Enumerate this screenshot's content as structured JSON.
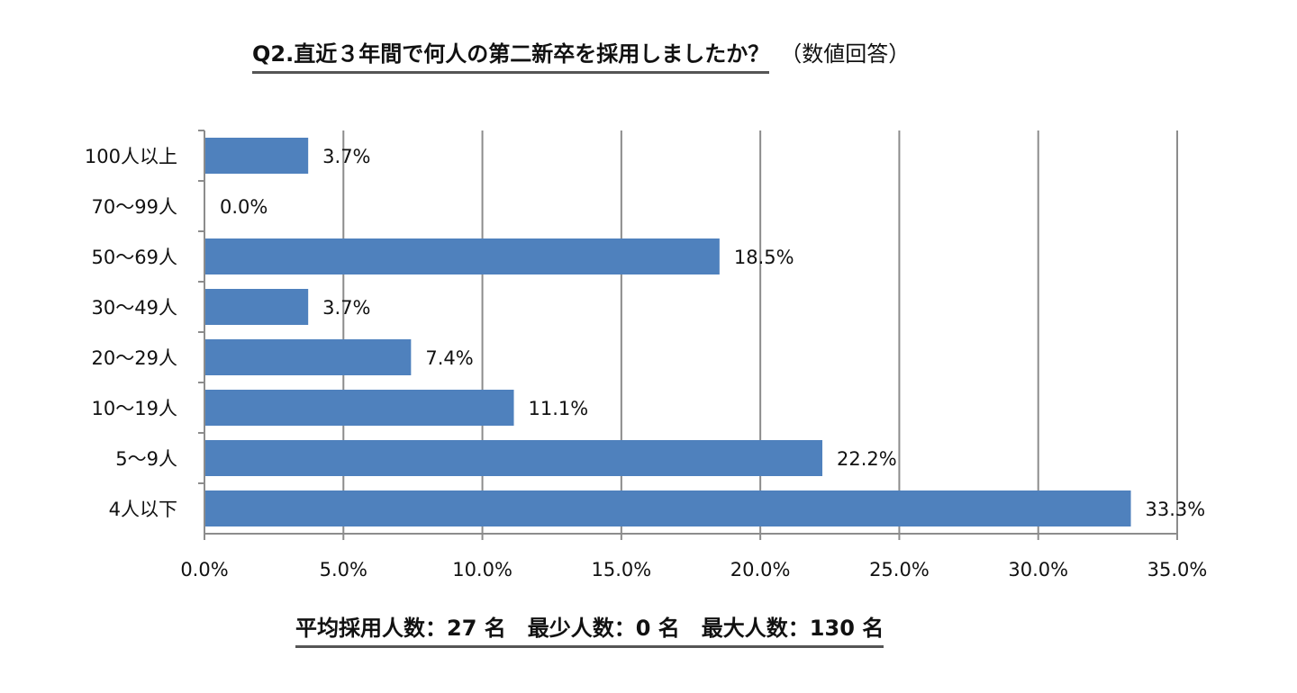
{
  "chart_data": {
    "type": "bar",
    "orientation": "horizontal",
    "title": "Q2.直近３年間で何人の第二新卒を採用しましたか？",
    "subtitle": "（数値回答）",
    "categories": [
      "100人以上",
      "70～99人",
      "50～69人",
      "30～49人",
      "20～29人",
      "10～19人",
      "5～9人",
      "4人以下"
    ],
    "values": [
      3.7,
      0.0,
      18.5,
      3.7,
      7.4,
      11.1,
      22.2,
      33.3
    ],
    "data_labels": [
      "3.7%",
      "0.0%",
      "18.5%",
      "3.7%",
      "7.4%",
      "11.1%",
      "22.2%",
      "33.3%"
    ],
    "xticks": [
      "0.0%",
      "5.0%",
      "10.0%",
      "15.0%",
      "20.0%",
      "25.0%",
      "30.0%",
      "35.0%"
    ],
    "xlim": [
      0,
      35
    ],
    "xlabel": "",
    "ylabel": "",
    "grid": true,
    "bar_color": "#4F81BD",
    "footer": "平均採用人数：27 名　最少人数：0 名　最大人数：130 名"
  }
}
